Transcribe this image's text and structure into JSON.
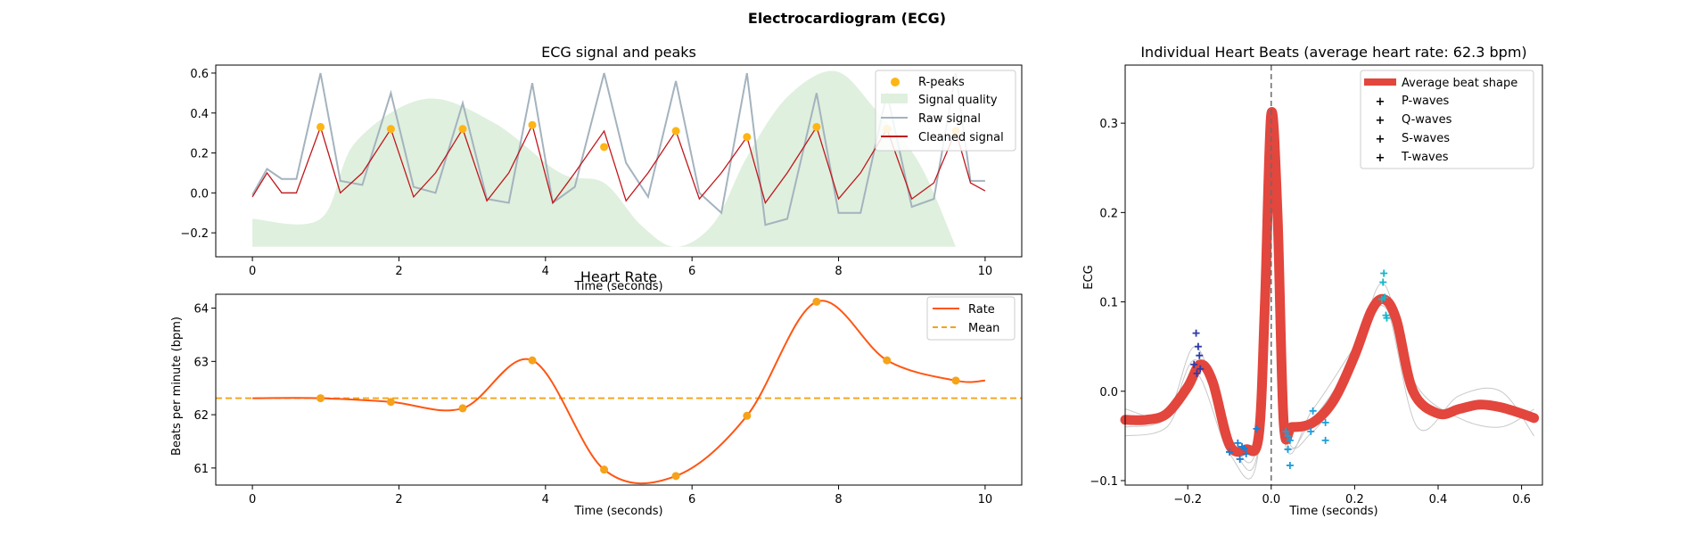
{
  "figure": {
    "suptitle": "Electrocardiogram (ECG)"
  },
  "colors": {
    "raw_signal": "#a4b3be",
    "cleaned_signal": "#c0161c",
    "r_peaks": "#fdb515",
    "signal_quality": "#dff0de",
    "rate": "#ff5613",
    "mean": "#f5a318",
    "average_beat": "#e2463d",
    "p_waves": "#2d3ba6",
    "q_waves": "#1780d6",
    "s_waves": "#1c9fda",
    "t_waves": "#14b7c9",
    "individual_beats": "#c8c8c8",
    "zero_line": "#6b6b6b"
  },
  "chart_data": [
    {
      "type": "line",
      "title": "ECG signal and peaks",
      "xlabel": "Time (seconds)",
      "ylabel": "",
      "xlim": [
        -0.5,
        10.5
      ],
      "ylim": [
        -0.32,
        0.64
      ],
      "xticks": [
        0,
        2,
        4,
        6,
        8,
        10
      ],
      "yticks": [
        -0.2,
        0.0,
        0.2,
        0.4,
        0.6
      ],
      "ytick_labels": [
        "−0.2",
        "0.0",
        "0.2",
        "0.4",
        "0.6"
      ],
      "legend_position": "top-right",
      "legend": [
        "R-peaks",
        "Signal quality",
        "Raw signal",
        "Cleaned signal"
      ],
      "r_peaks": {
        "name": "R-peaks",
        "x": [
          0.93,
          1.89,
          2.87,
          3.82,
          4.8,
          5.78,
          6.75,
          7.7,
          8.66,
          9.6
        ],
        "y": [
          0.33,
          0.32,
          0.32,
          0.34,
          0.23,
          0.31,
          0.28,
          0.33,
          0.32,
          0.31
        ]
      },
      "signal_quality": {
        "name": "Signal quality",
        "x": [
          0,
          0.93,
          1.4,
          2.35,
          3.3,
          4.2,
          4.8,
          5.3,
          5.78,
          6.3,
          6.75,
          7.3,
          7.95,
          8.5,
          9.1,
          9.6
        ],
        "y": [
          -0.13,
          -0.13,
          0.25,
          0.47,
          0.35,
          0.1,
          0.05,
          -0.16,
          -0.27,
          -0.15,
          0.18,
          0.48,
          0.61,
          0.42,
          0.15,
          -0.27
        ]
      },
      "raw_signal": {
        "name": "Raw signal",
        "x": [
          0,
          0.2,
          0.4,
          0.6,
          0.93,
          1.2,
          1.5,
          1.89,
          2.2,
          2.5,
          2.87,
          3.2,
          3.5,
          3.82,
          4.1,
          4.4,
          4.8,
          5.1,
          5.4,
          5.78,
          6.1,
          6.4,
          6.75,
          7.0,
          7.3,
          7.7,
          8.0,
          8.3,
          8.66,
          9.0,
          9.3,
          9.6,
          9.8,
          10.0
        ],
        "y": [
          -0.01,
          0.12,
          0.07,
          0.07,
          0.6,
          0.06,
          0.04,
          0.5,
          0.03,
          0.0,
          0.45,
          -0.03,
          -0.05,
          0.55,
          -0.05,
          0.03,
          0.6,
          0.15,
          -0.02,
          0.56,
          0.0,
          -0.1,
          0.6,
          -0.16,
          -0.13,
          0.5,
          -0.1,
          -0.1,
          0.5,
          -0.07,
          -0.03,
          0.6,
          0.06,
          0.06
        ]
      },
      "cleaned_signal": {
        "name": "Cleaned signal",
        "x": [
          0,
          0.2,
          0.4,
          0.6,
          0.93,
          1.2,
          1.5,
          1.89,
          2.2,
          2.5,
          2.87,
          3.2,
          3.5,
          3.82,
          4.1,
          4.4,
          4.8,
          5.1,
          5.4,
          5.78,
          6.1,
          6.4,
          6.75,
          7.0,
          7.3,
          7.7,
          8.0,
          8.3,
          8.66,
          9.0,
          9.3,
          9.6,
          9.8,
          10.0
        ],
        "y": [
          -0.02,
          0.1,
          0.0,
          0.0,
          0.33,
          0.0,
          0.1,
          0.32,
          -0.02,
          0.1,
          0.32,
          -0.04,
          0.1,
          0.34,
          -0.05,
          0.1,
          0.31,
          -0.04,
          0.1,
          0.31,
          -0.03,
          0.1,
          0.28,
          -0.05,
          0.1,
          0.33,
          -0.03,
          0.1,
          0.32,
          -0.03,
          0.05,
          0.31,
          0.05,
          0.01
        ]
      }
    },
    {
      "type": "line",
      "title": "Heart Rate",
      "xlabel": "Time (seconds)",
      "ylabel": "Beats per minute (bpm)",
      "xlim": [
        -0.5,
        10.5
      ],
      "ylim": [
        60.68,
        64.26
      ],
      "xticks": [
        0,
        2,
        4,
        6,
        8,
        10
      ],
      "yticks": [
        61,
        62,
        63,
        64
      ],
      "legend_position": "top-right",
      "legend": [
        "Rate",
        "Mean"
      ],
      "rate": {
        "name": "Rate",
        "x": [
          0,
          0.93,
          1.89,
          2.87,
          3.82,
          4.8,
          5.78,
          6.75,
          7.7,
          8.66,
          9.6,
          10.0
        ],
        "y": [
          62.31,
          62.31,
          62.24,
          62.12,
          63.02,
          60.97,
          60.85,
          61.98,
          64.12,
          63.02,
          62.64,
          62.64
        ]
      },
      "mean": {
        "name": "Mean",
        "value": 62.31
      }
    },
    {
      "type": "line",
      "title": "Individual Heart Beats (average heart rate: 62.3 bpm)",
      "xlabel": "Time (seconds)",
      "ylabel": "ECG",
      "xlim": [
        -0.35,
        0.65
      ],
      "ylim": [
        -0.105,
        0.365
      ],
      "xticks": [
        -0.2,
        0.0,
        0.2,
        0.4,
        0.6
      ],
      "xtick_labels": [
        "−0.2",
        "0.0",
        "0.2",
        "0.4",
        "0.6"
      ],
      "yticks": [
        -0.1,
        0.0,
        0.1,
        0.2,
        0.3
      ],
      "ytick_labels": [
        "−0.1",
        "0.0",
        "0.1",
        "0.2",
        "0.3"
      ],
      "legend_position": "top-right",
      "legend": [
        "Average beat shape",
        "P-waves",
        "Q-waves",
        "S-waves",
        "T-waves"
      ],
      "average_beat": {
        "name": "Average beat shape",
        "x": [
          -0.35,
          -0.3,
          -0.25,
          -0.2,
          -0.17,
          -0.14,
          -0.1,
          -0.06,
          -0.03,
          -0.015,
          0.0,
          0.015,
          0.03,
          0.05,
          0.1,
          0.15,
          0.2,
          0.24,
          0.27,
          0.3,
          0.34,
          0.4,
          0.45,
          0.5,
          0.55,
          0.6,
          0.63
        ],
        "y": [
          -0.032,
          -0.032,
          -0.025,
          0.005,
          0.03,
          0.01,
          -0.06,
          -0.065,
          -0.05,
          0.1,
          0.31,
          0.2,
          -0.035,
          -0.04,
          -0.035,
          -0.01,
          0.04,
          0.09,
          0.103,
          0.08,
          0.0,
          -0.025,
          -0.02,
          -0.015,
          -0.018,
          -0.025,
          -0.03
        ]
      },
      "individual_beats": [
        {
          "x": [
            -0.35,
            -0.25,
            -0.18,
            -0.1,
            -0.03,
            0.0,
            0.03,
            0.1,
            0.2,
            0.27,
            0.35,
            0.45,
            0.55,
            0.63
          ],
          "y": [
            -0.04,
            -0.03,
            0.035,
            -0.055,
            -0.06,
            0.3,
            -0.04,
            -0.03,
            0.04,
            0.12,
            -0.01,
            -0.02,
            -0.02,
            -0.03
          ]
        },
        {
          "x": [
            -0.35,
            -0.25,
            -0.18,
            -0.1,
            -0.03,
            0.0,
            0.03,
            0.1,
            0.2,
            0.27,
            0.35,
            0.45,
            0.55,
            0.63
          ],
          "y": [
            -0.05,
            -0.04,
            0.02,
            -0.07,
            -0.065,
            0.31,
            -0.03,
            -0.045,
            0.03,
            0.1,
            -0.04,
            -0.005,
            0.0,
            -0.05
          ]
        },
        {
          "x": [
            -0.35,
            -0.25,
            -0.18,
            -0.1,
            -0.03,
            0.0,
            0.03,
            0.1,
            0.2,
            0.27,
            0.35,
            0.45,
            0.55,
            0.63
          ],
          "y": [
            -0.02,
            -0.025,
            0.05,
            -0.05,
            -0.05,
            0.3,
            -0.05,
            -0.02,
            0.05,
            0.095,
            0.005,
            -0.03,
            -0.04,
            -0.02
          ]
        }
      ],
      "p_waves": {
        "name": "P-waves",
        "x": [
          -0.18,
          -0.175,
          -0.17,
          -0.185,
          -0.172,
          -0.178
        ],
        "y": [
          0.065,
          0.05,
          0.025,
          0.03,
          0.04,
          0.02
        ]
      },
      "q_waves": {
        "name": "Q-waves",
        "x": [
          -0.1,
          -0.075,
          -0.07,
          -0.08,
          -0.065,
          -0.06,
          -0.035
        ],
        "y": [
          -0.068,
          -0.076,
          -0.062,
          -0.058,
          -0.064,
          -0.07,
          -0.042
        ]
      },
      "s_waves": {
        "name": "S-waves",
        "x": [
          0.035,
          0.04,
          0.045,
          0.1,
          0.095,
          0.13,
          0.13,
          0.045,
          0.04
        ],
        "y": [
          -0.045,
          -0.065,
          -0.083,
          -0.022,
          -0.045,
          -0.055,
          -0.035,
          -0.055,
          -0.05
        ]
      },
      "t_waves": {
        "name": "T-waves",
        "x": [
          0.27,
          0.268,
          0.272,
          0.275,
          0.277,
          0.265
        ],
        "y": [
          0.132,
          0.122,
          0.105,
          0.085,
          0.082,
          0.103
        ]
      }
    }
  ]
}
